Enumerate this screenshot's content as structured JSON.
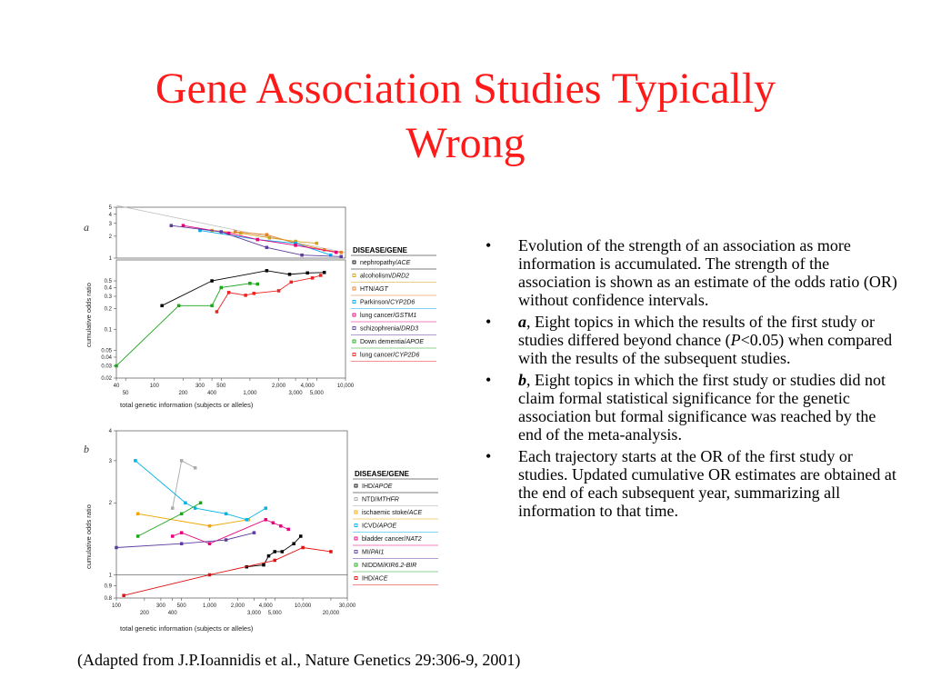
{
  "title": {
    "line1": "Gene Association Studies Typically",
    "line2": "Wrong"
  },
  "caption": "(Adapted from J.P.Ioannidis et al., Nature Genetics 29:306-9, 2001)",
  "bullets": [
    {
      "marker": "•",
      "lead": "",
      "lead_tail": "",
      "text": "Evolution of the strength of an association as more information is accumulated. The strength of the association is shown as an estimate of the odds  ratio (OR) without confidence intervals."
    },
    {
      "marker": "•",
      "lead": "a",
      "lead_tail": ", Eight topics in which the results of the first study or studies differed beyond chance (",
      "p_letter": "P",
      "text": "<0.05) when compared with the results of the subsequent studies."
    },
    {
      "marker": "•",
      "lead": "b",
      "lead_tail": "",
      "text": ", Eight topics in which the first study or studies did not claim formal statistical significance for the genetic association but formal significance was reached by the end of the meta-analysis."
    },
    {
      "marker": "•",
      "lead": "",
      "lead_tail": "",
      "text": "Each trajectory starts at the OR of the first study or studies. Updated cumulative OR estimates are obtained at the end of each subsequent year, summarizing all information to that time."
    }
  ],
  "chart_data": [
    {
      "type": "line",
      "panel": "a",
      "xscale": "log",
      "yscale": "log",
      "xlim": [
        40,
        10000
      ],
      "ylim_top": [
        1,
        5
      ],
      "ylim_bottom": [
        0.02,
        1
      ],
      "x_ticks_upper_row": [
        "40",
        "100",
        "300",
        "500",
        "2,000",
        "4,000",
        "10,000"
      ],
      "x_ticks_lower_row": [
        "50",
        "200",
        "400",
        "1,000",
        "3,000",
        "5,000"
      ],
      "y_ticks_top": [
        "5",
        "4",
        "3",
        "2",
        "1"
      ],
      "y_ticks_bottom": [
        "0.5",
        "0.4",
        "0.3",
        "0.2",
        "0.1",
        "0.05",
        "0.04",
        "0.03",
        "0.02"
      ],
      "xlabel": "total genetic information (subjects or alleles)",
      "ylabel": "cumulative odds ratio",
      "legend_title": "DISEASE/GENE",
      "series": [
        {
          "name": "nephropathy/ACE",
          "prefix": "nephropathy/",
          "gene": "ACE",
          "color": "#000000",
          "x": [
            120,
            400,
            1500,
            2600,
            4000,
            6000
          ],
          "y": [
            0.22,
            0.5,
            0.7,
            0.62,
            0.65,
            0.66
          ]
        },
        {
          "name": "alcoholism/DRD2",
          "prefix": "alcoholism/",
          "gene": "DRD2",
          "color": "#d4a017",
          "x": [
            400,
            800,
            1600,
            3000,
            5000
          ],
          "y": [
            2.4,
            2.2,
            1.9,
            1.7,
            1.6
          ]
        },
        {
          "name": "HTN/AGT",
          "prefix": "HTN/",
          "gene": "AGT",
          "color": "#e67e22",
          "x": [
            700,
            1500,
            3000,
            6000,
            9000
          ],
          "y": [
            2.3,
            2.1,
            1.6,
            1.3,
            1.2
          ]
        },
        {
          "name": "Parkinson/CYP2D6",
          "prefix": "Parkinson/",
          "gene": "CYP2D6",
          "color": "#00aaee",
          "x": [
            300,
            1200,
            3000,
            7000
          ],
          "y": [
            2.4,
            1.8,
            1.6,
            1.1
          ]
        },
        {
          "name": "lung cancer/GSTM1",
          "prefix": "lung cancer/",
          "gene": "GSTM1",
          "color": "#e6007e",
          "x": [
            200,
            600,
            1200,
            3000,
            8000
          ],
          "y": [
            2.8,
            2.2,
            1.8,
            1.5,
            1.2
          ]
        },
        {
          "name": "schizophrenia/DRD3",
          "prefix": "schizophrenia/",
          "gene": "DRD3",
          "color": "#5b3c9e",
          "x": [
            150,
            500,
            1500,
            3500,
            9000
          ],
          "y": [
            2.8,
            2.3,
            1.4,
            1.1,
            1.05
          ]
        },
        {
          "name": "Down dementia/APOE",
          "prefix": "Down dementia/",
          "gene": "APOE",
          "color": "#1aa51a",
          "x": [
            40,
            180,
            400,
            500,
            1000,
            1200
          ],
          "y": [
            0.03,
            0.22,
            0.22,
            0.4,
            0.46,
            0.45
          ]
        },
        {
          "name": "lung cancer/CYP2D6",
          "prefix": "lung cancer/",
          "gene": "CYP2D6",
          "color": "#ee2222",
          "x": [
            450,
            600,
            900,
            1100,
            2000,
            2700,
            4500,
            5500
          ],
          "y": [
            0.18,
            0.34,
            0.31,
            0.33,
            0.36,
            0.48,
            0.55,
            0.6
          ]
        }
      ]
    },
    {
      "type": "line",
      "panel": "b",
      "xscale": "log",
      "yscale": "log",
      "xlim": [
        100,
        30000
      ],
      "ylim": [
        0.8,
        4
      ],
      "x_ticks_upper_row": [
        "100",
        "300",
        "500",
        "1,000",
        "2,000",
        "4,000",
        "10,000",
        "30,000"
      ],
      "x_ticks_lower_row": [
        "200",
        "400",
        "3,000",
        "5,000",
        "20,000"
      ],
      "y_ticks": [
        "4",
        "3",
        "2",
        "1",
        "0.9",
        "0.8"
      ],
      "xlabel": "total genetic information (subjects or alleles)",
      "ylabel": "cumulative odds ratio",
      "legend_title": "DISEASE/GENE",
      "series": [
        {
          "name": "IHD/APOE",
          "prefix": "IHD/",
          "gene": "APOE",
          "color": "#000000",
          "x": [
            2500,
            3800,
            4300,
            5000,
            6000,
            8000,
            9500
          ],
          "y": [
            1.08,
            1.1,
            1.2,
            1.25,
            1.25,
            1.35,
            1.45
          ]
        },
        {
          "name": "NTD/MTHFR",
          "prefix": "NTD/",
          "gene": "MTHFR",
          "color": "#aaaaaa",
          "x": [
            400,
            500,
            700
          ],
          "y": [
            1.9,
            3.0,
            2.8
          ]
        },
        {
          "name": "ischaemic stoke/ACE",
          "prefix": "ischaemic stoke/",
          "gene": "ACE",
          "color": "#f0a500",
          "x": [
            170,
            1000,
            2600
          ],
          "y": [
            1.8,
            1.6,
            1.7
          ]
        },
        {
          "name": "ICVD/APOE",
          "prefix": "ICVD/",
          "gene": "APOE",
          "color": "#00b4e6",
          "x": [
            160,
            550,
            700,
            1500,
            2500,
            4000
          ],
          "y": [
            3.0,
            2.0,
            1.9,
            1.8,
            1.7,
            1.9
          ]
        },
        {
          "name": "bladder cancer/NAT2",
          "prefix": "bladder cancer/",
          "gene": "NAT2",
          "color": "#e6007e",
          "x": [
            400,
            500,
            1000,
            4000,
            4800,
            5800,
            7000
          ],
          "y": [
            1.45,
            1.5,
            1.35,
            1.7,
            1.65,
            1.6,
            1.55
          ]
        },
        {
          "name": "MI/PAI1",
          "prefix": "MI/",
          "gene": "PAI1",
          "color": "#5b3c9e",
          "x": [
            100,
            500,
            1500,
            3000
          ],
          "y": [
            1.3,
            1.35,
            1.4,
            1.5
          ]
        },
        {
          "name": "NIDDM/KIR6.2-BIR",
          "prefix": "NIDDM/",
          "gene": "KIR6.2-BIR",
          "color": "#1aa51a",
          "x": [
            170,
            500,
            800
          ],
          "y": [
            1.45,
            1.8,
            2.0
          ]
        },
        {
          "name": "IHD/ACE",
          "prefix": "IHD/",
          "gene": "ACE",
          "color": "#e01010",
          "x": [
            120,
            1000,
            5000,
            10000,
            20000
          ],
          "y": [
            0.82,
            1.0,
            1.15,
            1.3,
            1.25
          ]
        }
      ]
    }
  ]
}
